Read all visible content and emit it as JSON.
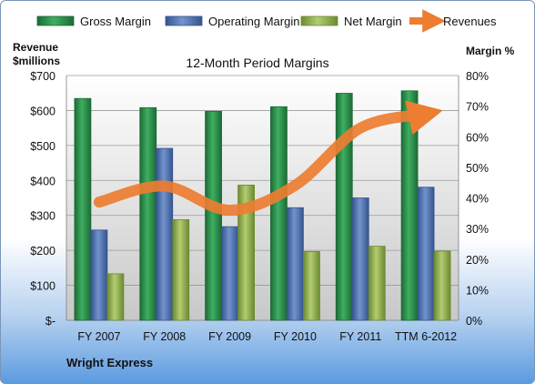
{
  "chart_data": {
    "type": "bar",
    "title": "12-Month Period Margins",
    "categories": [
      "FY 2007",
      "FY 2008",
      "FY 2009",
      "FY 2010",
      "FY 2011",
      "TTM 6-2012"
    ],
    "left_axis": {
      "label_line1": "Revenue",
      "label_line2": "$millions",
      "range": [
        0,
        700
      ],
      "ticks": [
        0,
        100,
        200,
        300,
        400,
        500,
        600,
        700
      ],
      "tick_labels": [
        "$-",
        "$100",
        "$200",
        "$300",
        "$400",
        "$500",
        "$600",
        "$700"
      ]
    },
    "right_axis": {
      "label": "Margin %",
      "range": [
        0,
        80
      ],
      "ticks": [
        0,
        10,
        20,
        30,
        40,
        50,
        60,
        70,
        80
      ],
      "tick_labels": [
        "0%",
        "10%",
        "20%",
        "30%",
        "40%",
        "50%",
        "60%",
        "70%",
        "80%"
      ]
    },
    "series": [
      {
        "name": "Gross Margin",
        "kind": "bar",
        "axis": "right",
        "color": "#2a8a4a",
        "values": [
          72.5,
          69.5,
          68.3,
          69.8,
          74.2,
          75.0
        ]
      },
      {
        "name": "Operating Margin",
        "kind": "bar",
        "axis": "right",
        "color": "#4a6fb0",
        "values": [
          29.5,
          56.2,
          30.6,
          36.8,
          40.0,
          43.5
        ]
      },
      {
        "name": "Net Margin",
        "kind": "bar",
        "axis": "right",
        "color": "#8fae4a",
        "values": [
          15.2,
          32.9,
          44.2,
          22.5,
          24.2,
          22.6
        ]
      },
      {
        "name": "Revenues",
        "kind": "line",
        "axis": "left",
        "color": "#ed7d31",
        "values": [
          338,
          384,
          315,
          386,
          550,
          590
        ]
      }
    ],
    "grid": true,
    "legend_position": "top"
  },
  "footer": {
    "company": "Wright Express"
  }
}
